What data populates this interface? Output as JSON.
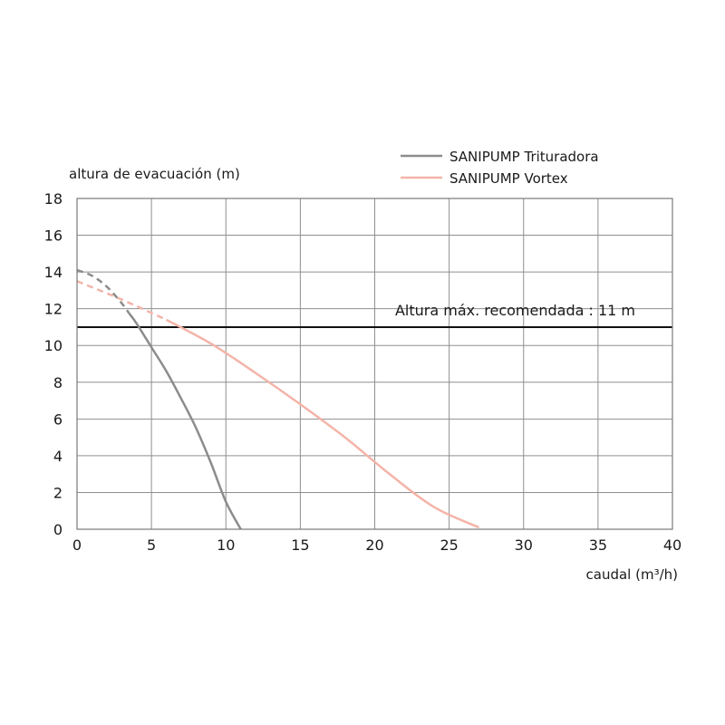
{
  "chart_data": {
    "type": "line",
    "xlabel": "caudal (m³/h)",
    "ylabel": "altura de evacuación (m)",
    "xlim": [
      0,
      40
    ],
    "ylim": [
      0,
      18
    ],
    "xticks": [
      "0",
      "5",
      "10",
      "15",
      "20",
      "25",
      "30",
      "35",
      "40"
    ],
    "yticks": [
      "0",
      "2",
      "4",
      "6",
      "8",
      "10",
      "12",
      "14",
      "16",
      "18"
    ],
    "grid": true,
    "legend_position": "top-right",
    "reference_line": {
      "y": 11,
      "label": "Altura máx. recomendada : 11 m",
      "color": "#111111"
    },
    "series": [
      {
        "name": "SANIPUMP Trituradora",
        "color": "#8c8c8c",
        "dashed_until_x": 3.5,
        "x": [
          0,
          1,
          2,
          3,
          4,
          5,
          6,
          7,
          8,
          9,
          10,
          11
        ],
        "y": [
          14.1,
          13.8,
          13.2,
          12.3,
          11.2,
          9.9,
          8.6,
          7.1,
          5.5,
          3.6,
          1.5,
          0
        ]
      },
      {
        "name": "SANIPUMP Vortex",
        "color": "#f4b4a8",
        "dashed_until_x": 6,
        "x": [
          0,
          3,
          6,
          9,
          12,
          15,
          18,
          21,
          24,
          27
        ],
        "y": [
          13.5,
          12.5,
          11.4,
          10.1,
          8.5,
          6.8,
          5.0,
          3.0,
          1.2,
          0.1
        ]
      }
    ]
  }
}
